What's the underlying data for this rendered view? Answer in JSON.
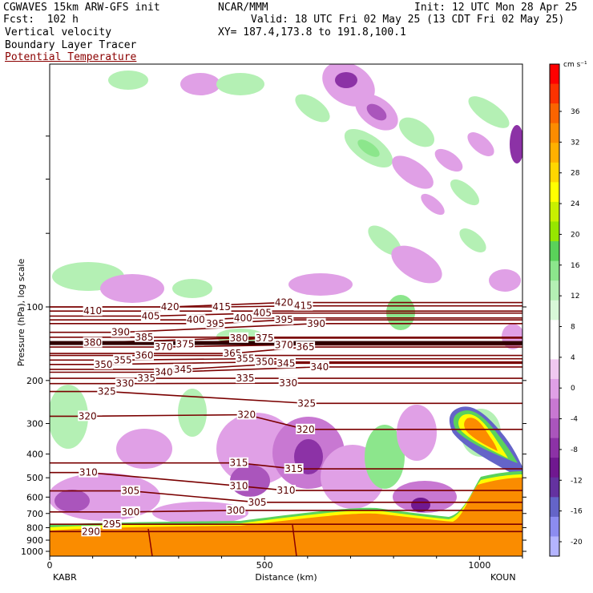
{
  "header": {
    "model": "CGWAVES 15km ARW-GFS init",
    "forecast": "Fcst:  102 h",
    "org": "NCAR/MMM",
    "init": "Init: 12 UTC Mon 28 Apr 25",
    "valid": "Valid: 18 UTC Fri 02 May 25 (13 CDT Fri 02 May 25)",
    "xy": "XY= 187.4,173.8 to 191.8,100.1",
    "field1": "Vertical velocity",
    "field2": "Boundary Layer Tracer",
    "field3": "Potential Temperature",
    "field3_color": "#8b0000"
  },
  "chart_data": {
    "type": "cross-section",
    "xlabel": "Distance (km)",
    "ylabel": "Pressure (hPa), log scale",
    "x_ticks": [
      "0",
      "500",
      "1000"
    ],
    "y_ticks": [
      "100",
      "200",
      "300",
      "400",
      "500",
      "600",
      "700",
      "800",
      "900",
      "1000"
    ],
    "left_station": "KABR",
    "right_station": "KOUN",
    "colorbar_unit": "cm s⁻¹",
    "colorbar_ticks": [
      "36",
      "32",
      "28",
      "24",
      "20",
      "16",
      "12",
      "8",
      "4",
      "0",
      "-4",
      "-8",
      "-12",
      "-16",
      "-20"
    ],
    "colorbar_colors": [
      "#fe0000",
      "#fc3200",
      "#fa6400",
      "#fc8c00",
      "#ffb000",
      "#ffd600",
      "#ffff00",
      "#c8f000",
      "#96e600",
      "#5ad25a",
      "#8ce68c",
      "#b4f0b4",
      "#d8f8d8",
      "#ffffff",
      "#ffffff",
      "#f0c8f0",
      "#e0a0e6",
      "#c878d2",
      "#aa55bc",
      "#8c32a6",
      "#701890",
      "#6432a0",
      "#6464c8",
      "#8c8cf0",
      "#b4b4ff"
    ],
    "theta_labels": [
      {
        "v": "420",
        "x": 280,
        "p": 100
      },
      {
        "v": "415",
        "x": 400,
        "p": 100
      },
      {
        "v": "420",
        "x": 545,
        "p": 96
      },
      {
        "v": "415",
        "x": 590,
        "p": 99
      },
      {
        "v": "410",
        "x": 100,
        "p": 104
      },
      {
        "v": "405",
        "x": 235,
        "p": 109
      },
      {
        "v": "400",
        "x": 340,
        "p": 113
      },
      {
        "v": "395",
        "x": 385,
        "p": 117
      },
      {
        "v": "400",
        "x": 450,
        "p": 111
      },
      {
        "v": "405",
        "x": 495,
        "p": 106
      },
      {
        "v": "395",
        "x": 545,
        "p": 113
      },
      {
        "v": "390",
        "x": 620,
        "p": 117
      },
      {
        "v": "390",
        "x": 165,
        "p": 127
      },
      {
        "v": "385",
        "x": 220,
        "p": 133
      },
      {
        "v": "380",
        "x": 440,
        "p": 134
      },
      {
        "v": "375",
        "x": 500,
        "p": 134
      },
      {
        "v": "380",
        "x": 100,
        "p": 140
      },
      {
        "v": "375",
        "x": 315,
        "p": 142
      },
      {
        "v": "370",
        "x": 265,
        "p": 146
      },
      {
        "v": "370",
        "x": 545,
        "p": 143
      },
      {
        "v": "365",
        "x": 595,
        "p": 146
      },
      {
        "v": "360",
        "x": 220,
        "p": 158
      },
      {
        "v": "365",
        "x": 425,
        "p": 155
      },
      {
        "v": "355",
        "x": 170,
        "p": 165
      },
      {
        "v": "355",
        "x": 455,
        "p": 163
      },
      {
        "v": "350",
        "x": 125,
        "p": 172
      },
      {
        "v": "350",
        "x": 500,
        "p": 168
      },
      {
        "v": "345",
        "x": 310,
        "p": 180
      },
      {
        "v": "345",
        "x": 550,
        "p": 170
      },
      {
        "v": "340",
        "x": 265,
        "p": 185
      },
      {
        "v": "340",
        "x": 628,
        "p": 176
      },
      {
        "v": "335",
        "x": 225,
        "p": 196
      },
      {
        "v": "335",
        "x": 455,
        "p": 196
      },
      {
        "v": "330",
        "x": 175,
        "p": 206
      },
      {
        "v": "330",
        "x": 555,
        "p": 205
      },
      {
        "v": "325",
        "x": 133,
        "p": 222
      },
      {
        "v": "325",
        "x": 598,
        "p": 248
      },
      {
        "v": "320",
        "x": 88,
        "p": 280
      },
      {
        "v": "320",
        "x": 458,
        "p": 276
      },
      {
        "v": "320",
        "x": 595,
        "p": 317
      },
      {
        "v": "315",
        "x": 440,
        "p": 435
      },
      {
        "v": "315",
        "x": 568,
        "p": 460
      },
      {
        "v": "310",
        "x": 90,
        "p": 476
      },
      {
        "v": "310",
        "x": 440,
        "p": 540
      },
      {
        "v": "310",
        "x": 550,
        "p": 564
      },
      {
        "v": "305",
        "x": 188,
        "p": 566
      },
      {
        "v": "305",
        "x": 483,
        "p": 630
      },
      {
        "v": "300",
        "x": 188,
        "p": 690
      },
      {
        "v": "300",
        "x": 433,
        "p": 680
      },
      {
        "v": "295",
        "x": 145,
        "p": 775
      },
      {
        "v": "290",
        "x": 96,
        "p": 830
      }
    ]
  }
}
